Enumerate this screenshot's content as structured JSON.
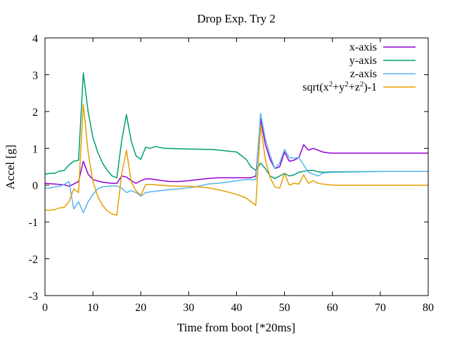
{
  "chart_data": {
    "type": "line",
    "title": "Drop Exp. Try 2",
    "xlabel": "Time from boot [*20ms]",
    "ylabel": "Accel [g]",
    "xlim": [
      0,
      80
    ],
    "ylim": [
      -3,
      4
    ],
    "x_ticks": [
      0,
      10,
      20,
      30,
      40,
      50,
      60,
      70,
      80
    ],
    "y_ticks": [
      -3,
      -2,
      -1,
      0,
      1,
      2,
      3,
      4
    ],
    "grid": false,
    "legend_position": "top-right",
    "series": [
      {
        "name": "x-axis",
        "color": "#9400d3",
        "points": [
          [
            0,
            0.05
          ],
          [
            2,
            0.03
          ],
          [
            4,
            0.01
          ],
          [
            5,
            -0.03
          ],
          [
            6,
            0.03
          ],
          [
            7,
            0.1
          ],
          [
            8,
            0.65
          ],
          [
            9,
            0.3
          ],
          [
            10,
            0.15
          ],
          [
            12,
            0.08
          ],
          [
            14,
            0.05
          ],
          [
            15,
            0.05
          ],
          [
            16,
            0.25
          ],
          [
            17,
            0.22
          ],
          [
            18,
            0.12
          ],
          [
            19,
            0.05
          ],
          [
            20,
            0.12
          ],
          [
            21,
            0.17
          ],
          [
            22,
            0.17
          ],
          [
            24,
            0.13
          ],
          [
            26,
            0.1
          ],
          [
            28,
            0.1
          ],
          [
            30,
            0.12
          ],
          [
            32,
            0.15
          ],
          [
            34,
            0.18
          ],
          [
            36,
            0.2
          ],
          [
            40,
            0.2
          ],
          [
            42,
            0.2
          ],
          [
            43,
            0.2
          ],
          [
            44,
            0.25
          ],
          [
            45,
            1.8
          ],
          [
            46,
            1.1
          ],
          [
            47,
            0.7
          ],
          [
            48,
            0.45
          ],
          [
            49,
            0.5
          ],
          [
            50,
            0.9
          ],
          [
            51,
            0.65
          ],
          [
            52,
            0.68
          ],
          [
            53,
            0.75
          ],
          [
            54,
            1.1
          ],
          [
            55,
            0.95
          ],
          [
            56,
            1.0
          ],
          [
            57,
            0.95
          ],
          [
            58,
            0.9
          ],
          [
            59,
            0.88
          ],
          [
            60,
            0.87
          ],
          [
            70,
            0.87
          ],
          [
            80,
            0.87
          ]
        ]
      },
      {
        "name": "y-axis",
        "color": "#009e73",
        "points": [
          [
            0,
            0.3
          ],
          [
            1,
            0.32
          ],
          [
            2,
            0.32
          ],
          [
            3,
            0.38
          ],
          [
            4,
            0.4
          ],
          [
            5,
            0.55
          ],
          [
            6,
            0.65
          ],
          [
            7,
            0.68
          ],
          [
            8,
            3.05
          ],
          [
            9,
            2.0
          ],
          [
            10,
            1.3
          ],
          [
            11,
            0.9
          ],
          [
            12,
            0.6
          ],
          [
            13,
            0.4
          ],
          [
            14,
            0.25
          ],
          [
            15,
            0.2
          ],
          [
            16,
            1.2
          ],
          [
            17,
            1.92
          ],
          [
            18,
            1.2
          ],
          [
            19,
            0.8
          ],
          [
            20,
            0.7
          ],
          [
            21,
            1.03
          ],
          [
            22,
            1.0
          ],
          [
            23,
            1.05
          ],
          [
            25,
            1.0
          ],
          [
            30,
            0.98
          ],
          [
            35,
            0.97
          ],
          [
            40,
            0.9
          ],
          [
            42,
            0.7
          ],
          [
            43,
            0.5
          ],
          [
            44,
            0.4
          ],
          [
            45,
            0.6
          ],
          [
            46,
            0.45
          ],
          [
            47,
            0.25
          ],
          [
            48,
            0.18
          ],
          [
            49,
            0.25
          ],
          [
            50,
            0.32
          ],
          [
            51,
            0.25
          ],
          [
            52,
            0.28
          ],
          [
            53,
            0.35
          ],
          [
            55,
            0.4
          ],
          [
            56,
            0.4
          ],
          [
            57,
            0.36
          ],
          [
            58,
            0.35
          ],
          [
            60,
            0.36
          ],
          [
            70,
            0.37
          ],
          [
            80,
            0.37
          ]
        ]
      },
      {
        "name": "z-axis",
        "color": "#56b4e9",
        "points": [
          [
            0,
            -0.08
          ],
          [
            1,
            -0.08
          ],
          [
            2,
            -0.05
          ],
          [
            3,
            -0.03
          ],
          [
            4,
            0.02
          ],
          [
            5,
            0.1
          ],
          [
            6,
            -0.65
          ],
          [
            7,
            -0.45
          ],
          [
            8,
            -0.75
          ],
          [
            9,
            -0.45
          ],
          [
            10,
            -0.25
          ],
          [
            11,
            -0.1
          ],
          [
            12,
            -0.05
          ],
          [
            13,
            -0.03
          ],
          [
            14,
            -0.02
          ],
          [
            15,
            -0.02
          ],
          [
            16,
            -0.08
          ],
          [
            17,
            -0.2
          ],
          [
            18,
            -0.15
          ],
          [
            19,
            -0.2
          ],
          [
            20,
            -0.3
          ],
          [
            21,
            -0.2
          ],
          [
            22,
            -0.18
          ],
          [
            24,
            -0.15
          ],
          [
            26,
            -0.12
          ],
          [
            28,
            -0.1
          ],
          [
            30,
            -0.07
          ],
          [
            32,
            -0.03
          ],
          [
            34,
            0.03
          ],
          [
            36,
            0.05
          ],
          [
            38,
            0.08
          ],
          [
            40,
            0.12
          ],
          [
            42,
            0.15
          ],
          [
            44,
            0.15
          ],
          [
            45,
            1.95
          ],
          [
            46,
            1.25
          ],
          [
            47,
            0.8
          ],
          [
            48,
            0.45
          ],
          [
            49,
            0.6
          ],
          [
            50,
            0.97
          ],
          [
            51,
            0.75
          ],
          [
            52,
            0.73
          ],
          [
            53,
            0.75
          ],
          [
            54,
            0.55
          ],
          [
            55,
            0.35
          ],
          [
            56,
            0.3
          ],
          [
            57,
            0.25
          ],
          [
            58,
            0.33
          ],
          [
            60,
            0.35
          ],
          [
            70,
            0.37
          ],
          [
            80,
            0.37
          ]
        ]
      },
      {
        "name": "sqrt(x^2+y^2+z^2)-1",
        "color": "#e69f00",
        "points": [
          [
            0,
            -0.68
          ],
          [
            1,
            -0.68
          ],
          [
            2,
            -0.67
          ],
          [
            3,
            -0.62
          ],
          [
            4,
            -0.6
          ],
          [
            5,
            -0.45
          ],
          [
            6,
            -0.1
          ],
          [
            7,
            -0.2
          ],
          [
            8,
            2.2
          ],
          [
            9,
            0.9
          ],
          [
            10,
            0.1
          ],
          [
            11,
            -0.3
          ],
          [
            12,
            -0.55
          ],
          [
            13,
            -0.7
          ],
          [
            14,
            -0.78
          ],
          [
            15,
            -0.82
          ],
          [
            16,
            0.3
          ],
          [
            17,
            0.95
          ],
          [
            18,
            0.1
          ],
          [
            19,
            -0.15
          ],
          [
            20,
            -0.28
          ],
          [
            21,
            0.02
          ],
          [
            22,
            0.02
          ],
          [
            24,
            0.0
          ],
          [
            26,
            -0.02
          ],
          [
            28,
            -0.03
          ],
          [
            30,
            -0.03
          ],
          [
            32,
            -0.05
          ],
          [
            34,
            -0.07
          ],
          [
            36,
            -0.12
          ],
          [
            38,
            -0.18
          ],
          [
            40,
            -0.25
          ],
          [
            42,
            -0.35
          ],
          [
            44,
            -0.55
          ],
          [
            45,
            1.62
          ],
          [
            46,
            0.7
          ],
          [
            47,
            0.2
          ],
          [
            48,
            -0.05
          ],
          [
            49,
            -0.08
          ],
          [
            50,
            0.32
          ],
          [
            51,
            0.0
          ],
          [
            52,
            0.05
          ],
          [
            53,
            0.03
          ],
          [
            54,
            0.28
          ],
          [
            55,
            0.05
          ],
          [
            56,
            0.12
          ],
          [
            57,
            0.05
          ],
          [
            58,
            0.03
          ],
          [
            60,
            0.0
          ],
          [
            70,
            0.0
          ],
          [
            80,
            0.0
          ]
        ]
      }
    ]
  }
}
